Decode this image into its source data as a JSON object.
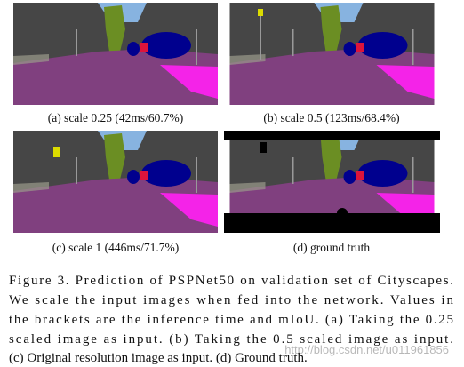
{
  "figure": {
    "subcaptions": [
      "(a) scale 0.25 (42ms/60.7%)",
      "(b) scale 0.5 (123ms/68.4%)",
      "(c) scale 1 (446ms/71.7%)",
      "(d) ground truth"
    ],
    "caption_lines": [
      "Figure 3. Prediction of PSPNet50 on validation set of Cityscapes.",
      "We scale the input images when fed into the network.  Values in",
      "the brackets are the inference time and mIoU. (a) Taking the 0.25",
      "scaled image as input.  (b) Taking the 0.5 scaled image as input.",
      "(c) Original resolution image as input. (d) Ground truth."
    ],
    "watermark": "http://blog.csdn.net/u011961856"
  }
}
